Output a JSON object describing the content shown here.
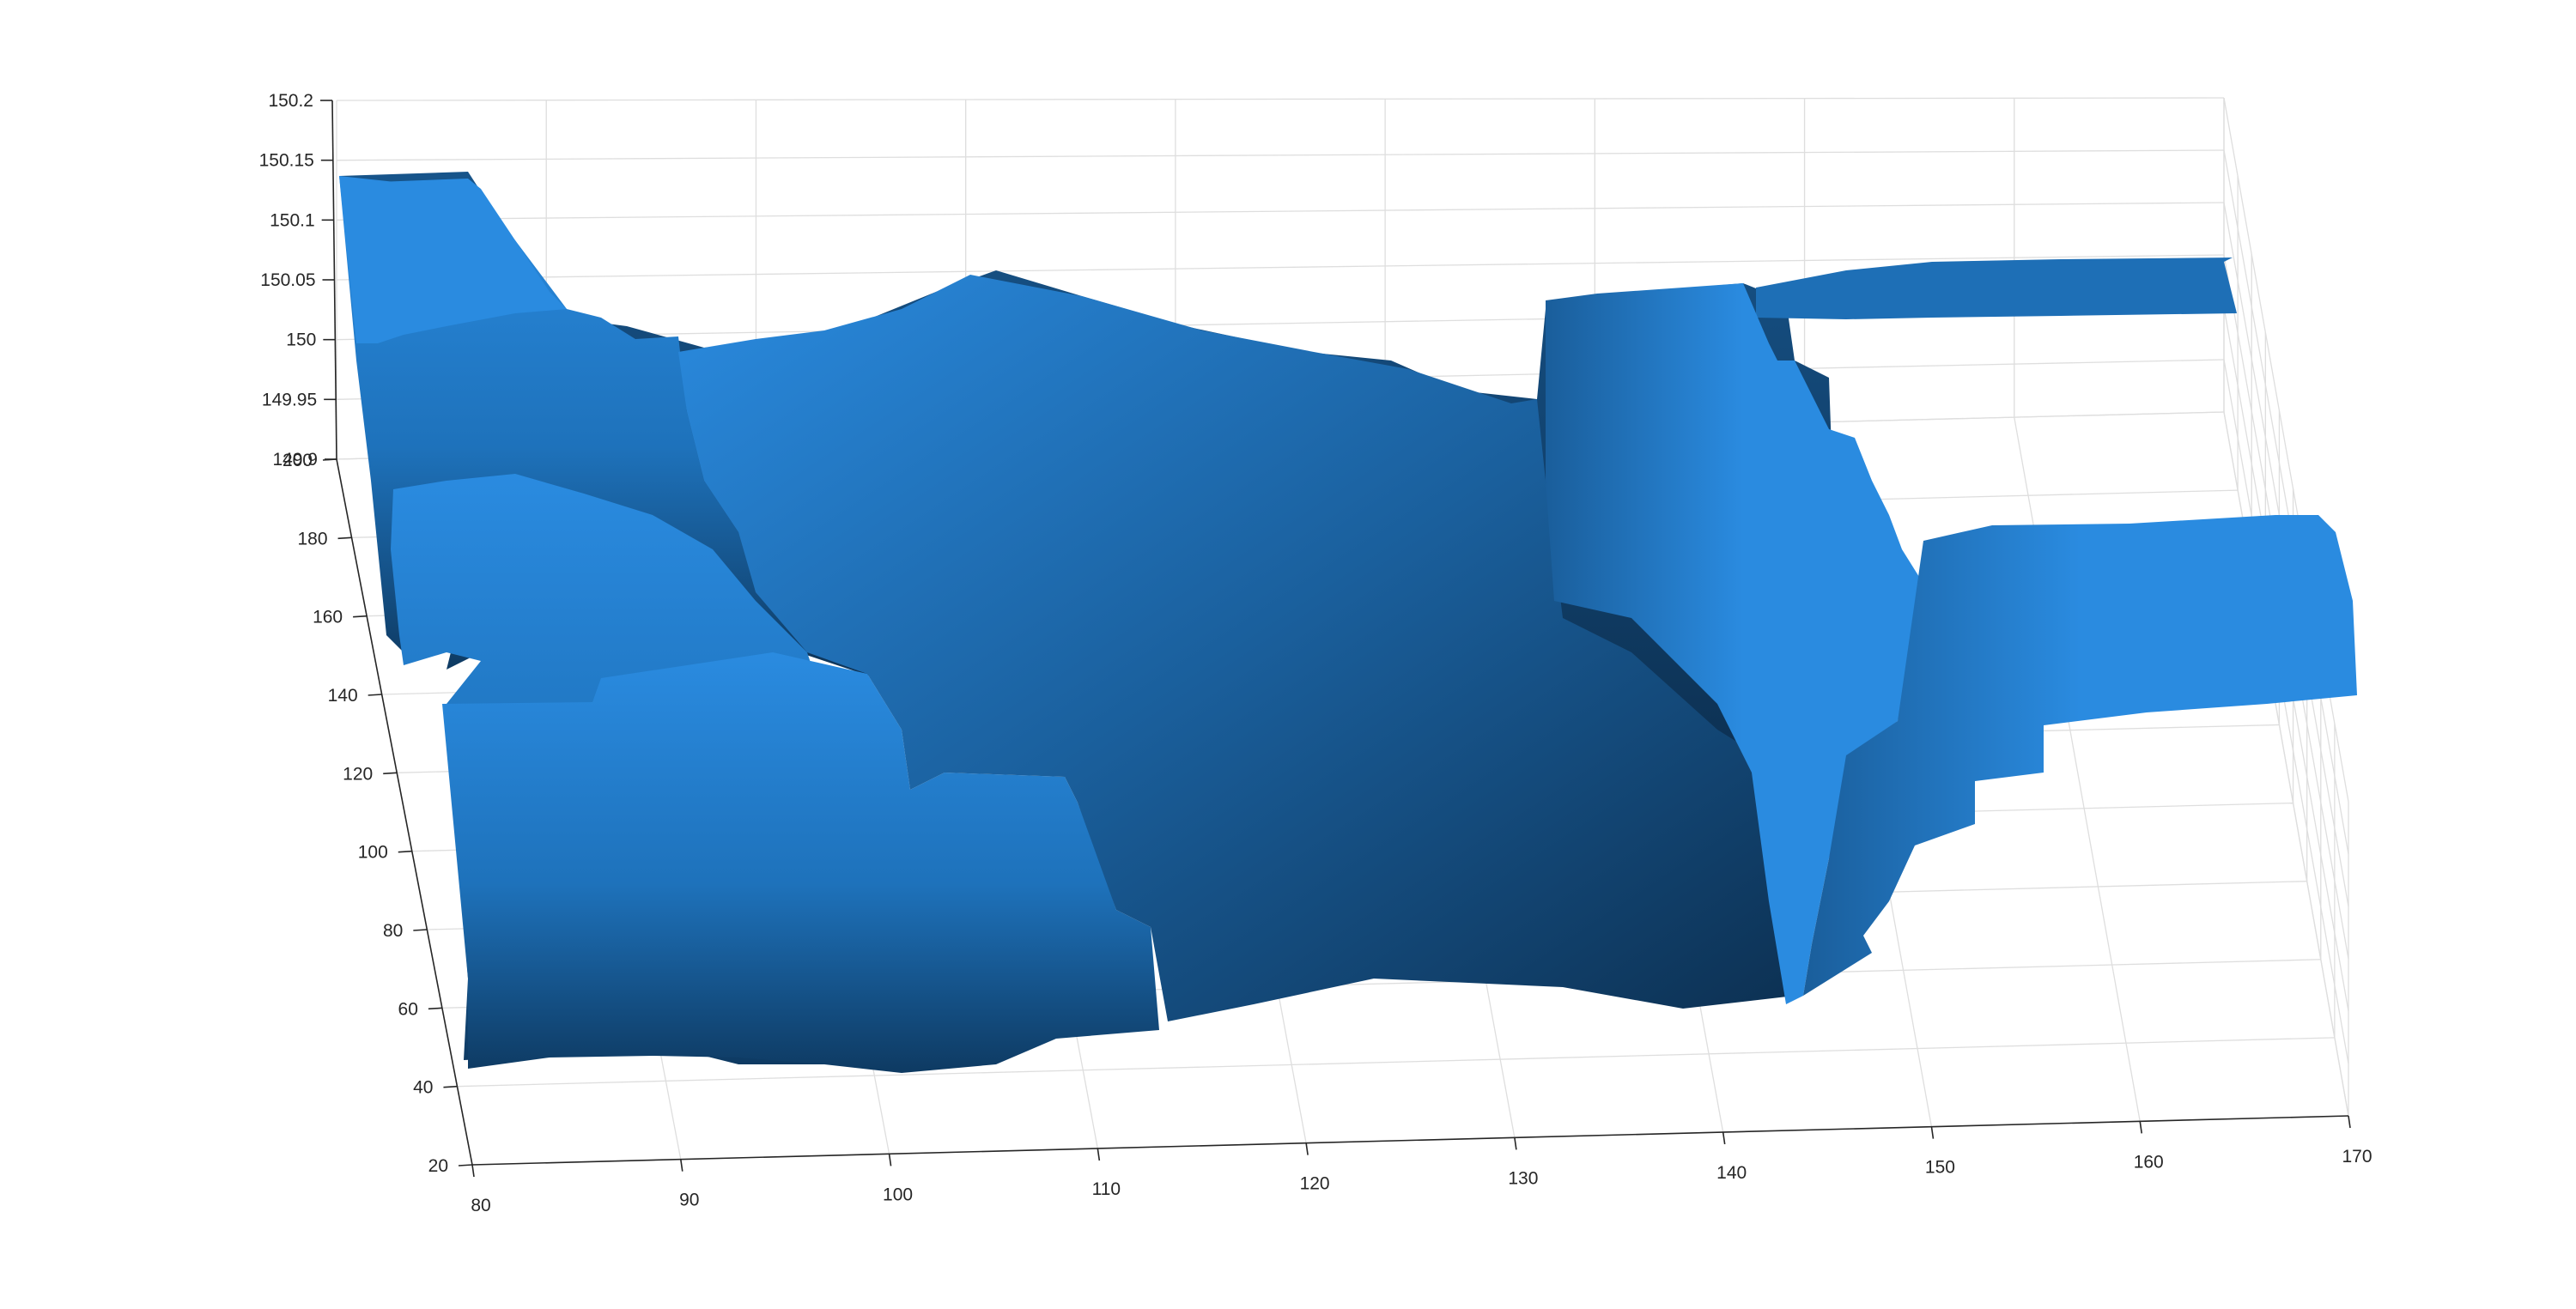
{
  "chart_data": {
    "type": "surface",
    "colors": {
      "surface_light": "#2a8be0",
      "surface_mid": "#1d6eb4",
      "surface_dark": "#0c2f50"
    },
    "x_axis": {
      "range": [
        80,
        170
      ],
      "ticks": [
        "80",
        "90",
        "100",
        "110",
        "120",
        "130",
        "140",
        "150",
        "160",
        "170"
      ]
    },
    "y_axis": {
      "range": [
        20,
        200
      ],
      "ticks": [
        "20",
        "40",
        "60",
        "80",
        "100",
        "120",
        "140",
        "160",
        "180",
        "200"
      ]
    },
    "z_axis": {
      "range": [
        149.9,
        150.2
      ],
      "ticks": [
        "149.9",
        "149.95",
        "150",
        "150.05",
        "150.1",
        "150.15",
        "150.2"
      ]
    },
    "grid": true,
    "legend": "none"
  }
}
